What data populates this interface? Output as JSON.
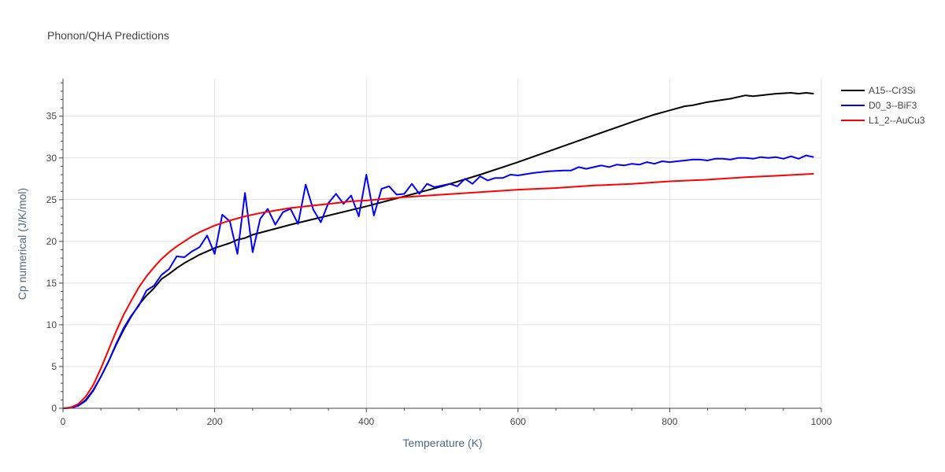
{
  "chart_data": {
    "type": "line",
    "title": "Phonon/QHA Predictions",
    "xlabel": "Temperature (K)",
    "ylabel": "Cp numerical (J/K/mol)",
    "xlim": [
      0,
      1000
    ],
    "ylim": [
      0,
      39.5
    ],
    "xticks": [
      0,
      200,
      400,
      600,
      800,
      1000
    ],
    "yticks": [
      0,
      5,
      10,
      15,
      20,
      25,
      30,
      35
    ],
    "grid": true,
    "legend_position": "top-right",
    "series": [
      {
        "name": "A15--Cr3Si",
        "color": "#000000",
        "x": [
          0,
          10,
          20,
          30,
          40,
          50,
          60,
          70,
          80,
          90,
          100,
          110,
          120,
          130,
          140,
          150,
          160,
          170,
          180,
          190,
          200,
          210,
          220,
          230,
          240,
          250,
          300,
          350,
          400,
          450,
          500,
          550,
          600,
          650,
          700,
          750,
          780,
          800,
          820,
          830,
          850,
          880,
          900,
          910,
          920,
          940,
          960,
          970,
          980,
          990
        ],
        "y": [
          0,
          0.05,
          0.3,
          1.0,
          2.2,
          3.8,
          5.6,
          7.6,
          9.4,
          11.0,
          12.4,
          13.5,
          14.4,
          15.5,
          16.1,
          16.8,
          17.4,
          17.9,
          18.4,
          18.8,
          19.2,
          19.5,
          19.8,
          20.2,
          20.4,
          20.8,
          22.0,
          23.1,
          24.2,
          25.4,
          26.6,
          28.0,
          29.5,
          31.1,
          32.7,
          34.3,
          35.2,
          35.7,
          36.2,
          36.3,
          36.7,
          37.1,
          37.5,
          37.4,
          37.5,
          37.7,
          37.8,
          37.7,
          37.8,
          37.7
        ]
      },
      {
        "name": "D0_3--BiF3",
        "color": "#0000ff",
        "x": [
          0,
          10,
          20,
          30,
          40,
          50,
          60,
          70,
          80,
          90,
          100,
          110,
          120,
          130,
          140,
          150,
          160,
          170,
          180,
          190,
          200,
          210,
          220,
          230,
          240,
          250,
          260,
          270,
          280,
          290,
          300,
          310,
          320,
          330,
          340,
          350,
          360,
          370,
          380,
          390,
          400,
          410,
          420,
          430,
          440,
          450,
          460,
          470,
          480,
          490,
          500,
          510,
          520,
          530,
          540,
          550,
          560,
          570,
          580,
          590,
          600,
          620,
          640,
          660,
          670,
          680,
          690,
          700,
          710,
          720,
          730,
          740,
          750,
          760,
          770,
          780,
          790,
          800,
          810,
          820,
          830,
          840,
          850,
          860,
          870,
          880,
          890,
          900,
          910,
          920,
          930,
          940,
          950,
          960,
          970,
          980,
          990
        ],
        "y": [
          0,
          0.05,
          0.3,
          0.9,
          2.1,
          3.8,
          5.6,
          7.7,
          9.6,
          11.1,
          12.3,
          14.1,
          14.7,
          16.0,
          16.7,
          18.2,
          18.1,
          18.8,
          19.3,
          20.7,
          18.5,
          23.2,
          22.4,
          18.5,
          25.8,
          18.7,
          22.7,
          23.9,
          22.0,
          23.5,
          23.9,
          22.1,
          26.8,
          23.8,
          22.3,
          24.6,
          25.7,
          24.5,
          25.5,
          23.0,
          28.0,
          23.1,
          26.3,
          26.6,
          25.6,
          25.7,
          26.9,
          25.7,
          26.9,
          26.5,
          26.7,
          26.9,
          26.6,
          27.5,
          26.9,
          27.8,
          27.3,
          27.6,
          27.6,
          28.0,
          27.9,
          28.2,
          28.4,
          28.5,
          28.5,
          28.9,
          28.7,
          28.9,
          29.1,
          28.9,
          29.2,
          29.1,
          29.3,
          29.2,
          29.5,
          29.3,
          29.6,
          29.5,
          29.6,
          29.7,
          29.8,
          29.8,
          29.7,
          29.9,
          29.9,
          29.8,
          30.0,
          30.0,
          29.9,
          30.1,
          30.0,
          30.1,
          29.9,
          30.2,
          29.9,
          30.3,
          30.1
        ]
      },
      {
        "name": "L1_2--AuCu3",
        "color": "#ff0000",
        "x": [
          0,
          10,
          20,
          30,
          40,
          50,
          60,
          70,
          80,
          90,
          100,
          110,
          120,
          130,
          140,
          150,
          160,
          170,
          180,
          190,
          200,
          220,
          240,
          260,
          280,
          300,
          320,
          340,
          360,
          380,
          400,
          450,
          500,
          550,
          600,
          650,
          700,
          750,
          800,
          850,
          900,
          950,
          990
        ],
        "y": [
          0,
          0.1,
          0.5,
          1.4,
          2.8,
          4.8,
          7.0,
          9.2,
          11.2,
          12.9,
          14.5,
          15.8,
          16.9,
          17.9,
          18.7,
          19.4,
          20.0,
          20.6,
          21.1,
          21.5,
          21.9,
          22.5,
          23.0,
          23.4,
          23.7,
          24.0,
          24.2,
          24.4,
          24.6,
          24.8,
          24.9,
          25.3,
          25.6,
          25.9,
          26.2,
          26.4,
          26.7,
          26.9,
          27.2,
          27.4,
          27.7,
          27.9,
          28.1
        ]
      }
    ]
  }
}
